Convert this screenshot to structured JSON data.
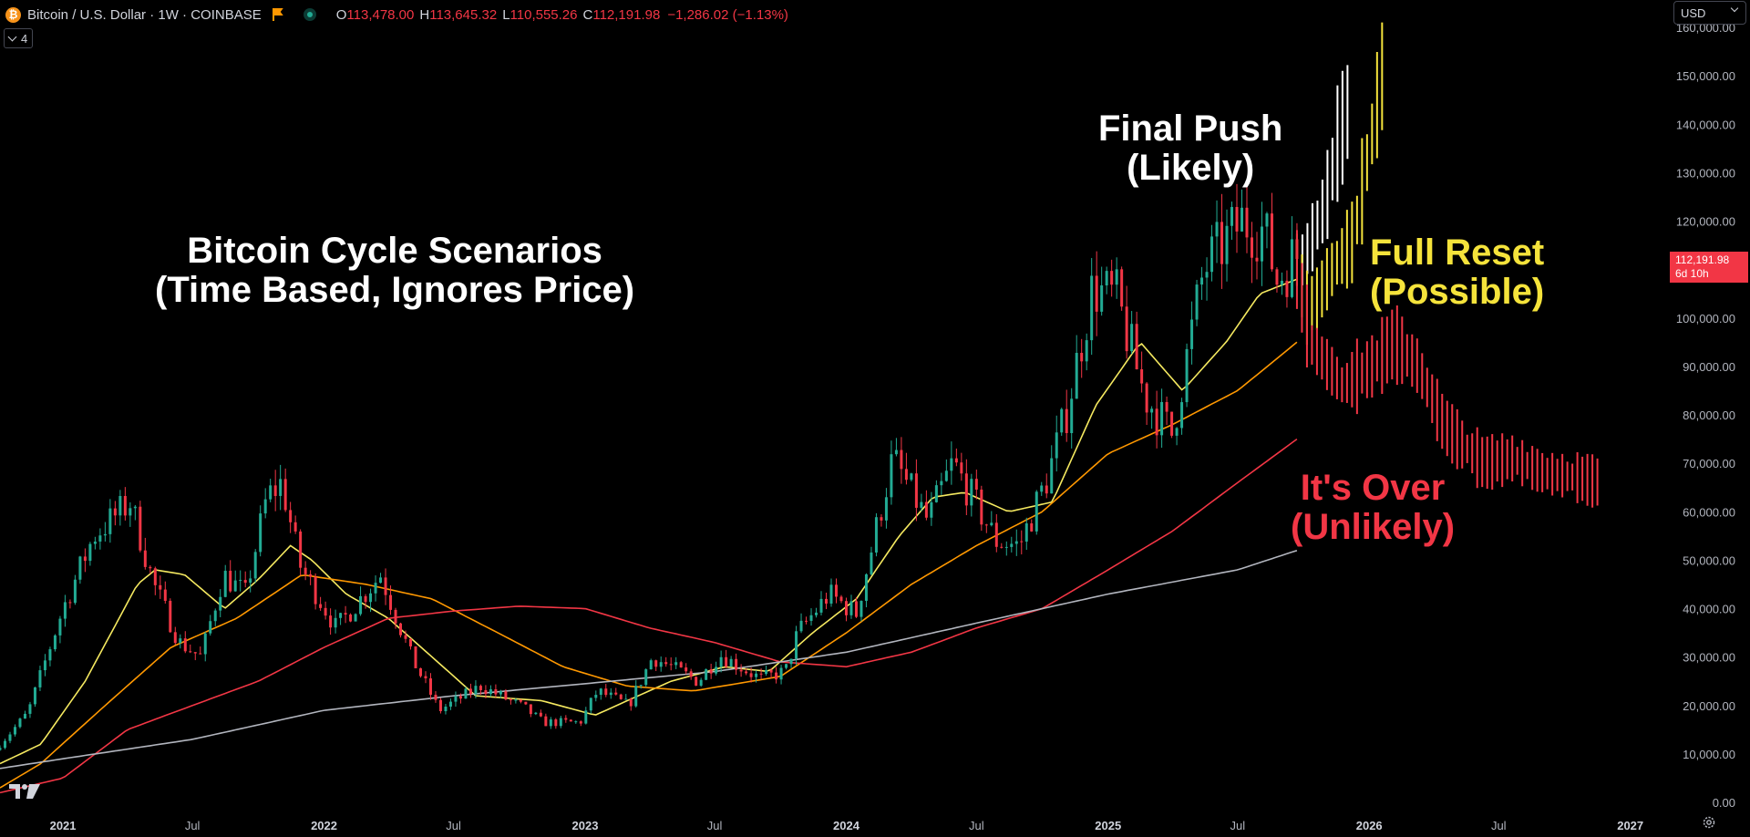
{
  "header": {
    "symbol": "Bitcoin / U.S. Dollar · 1W · COINBASE",
    "btc_logo": "₿",
    "ohlc": [
      {
        "k": "O",
        "v": "113,478.00"
      },
      {
        "k": "H",
        "v": "113,645.32"
      },
      {
        "k": "L",
        "v": "110,555.26"
      },
      {
        "k": "C",
        "v": "112,191.98"
      }
    ],
    "change": "−1,286.02 (−1.13%)",
    "indicators_count": "4",
    "currency": "USD"
  },
  "price_label": {
    "price": "112,191.98",
    "countdown": "6d 10h",
    "color": "#f23645"
  },
  "annotations": {
    "title_line1": "Bitcoin Cycle Scenarios",
    "title_line2": "(Time Based, Ignores Price)",
    "final_line1": "Final Push",
    "final_line2": "(Likely)",
    "reset_line1": "Full Reset",
    "reset_line2": "(Possible)",
    "over_line1": "It's Over",
    "over_line2": "(Unlikely)"
  },
  "colors": {
    "up": "#22ab94",
    "down": "#f23645",
    "ma_yellow": "#f5e960",
    "ma_orange": "#ff9800",
    "ma_red": "#f23645",
    "ma_gray": "#b2b5be",
    "final_push": "#ffffff",
    "full_reset": "#f5e33b",
    "its_over": "#f23645"
  },
  "chart_data": {
    "type": "candlestick",
    "interval": "1W",
    "x_axis_labels": [
      "2021",
      "Jul",
      "2022",
      "Jul",
      "2023",
      "Jul",
      "2024",
      "Jul",
      "2025",
      "Jul",
      "2026",
      "Jul",
      "2027"
    ],
    "y_axis_labels": [
      "0.00",
      "10,000.00",
      "20,000.00",
      "30,000.00",
      "40,000.00",
      "50,000.00",
      "60,000.00",
      "70,000.00",
      "80,000.00",
      "90,000.00",
      "100,000.00",
      "110,000.00",
      "120,000.00",
      "130,000.00",
      "140,000.00",
      "150,000.00",
      "160,000.00"
    ],
    "ylim": [
      0,
      160000
    ],
    "xlim": [
      "2020-10-05",
      "2027-02-15"
    ],
    "price_keypoints": [
      [
        "2020-10-05",
        10800
      ],
      [
        "2020-11-20",
        18500
      ],
      [
        "2021-01-08",
        40000
      ],
      [
        "2021-02-20",
        55000
      ],
      [
        "2021-04-12",
        62000
      ],
      [
        "2021-05-15",
        45000
      ],
      [
        "2021-06-20",
        33000
      ],
      [
        "2021-07-20",
        30000
      ],
      [
        "2021-08-20",
        47000
      ],
      [
        "2021-09-20",
        43000
      ],
      [
        "2021-10-20",
        63000
      ],
      [
        "2021-11-10",
        66000
      ],
      [
        "2021-12-05",
        49000
      ],
      [
        "2022-01-25",
        36000
      ],
      [
        "2022-03-28",
        47000
      ],
      [
        "2022-05-10",
        30000
      ],
      [
        "2022-06-18",
        19000
      ],
      [
        "2022-08-15",
        24000
      ],
      [
        "2022-10-15",
        19500
      ],
      [
        "2022-11-10",
        16500
      ],
      [
        "2023-01-01",
        16500
      ],
      [
        "2023-01-25",
        23000
      ],
      [
        "2023-03-10",
        20000
      ],
      [
        "2023-04-12",
        30000
      ],
      [
        "2023-06-15",
        25000
      ],
      [
        "2023-07-15",
        30500
      ],
      [
        "2023-09-10",
        25500
      ],
      [
        "2023-10-15",
        27000
      ],
      [
        "2023-11-01",
        35000
      ],
      [
        "2023-12-15",
        43000
      ],
      [
        "2024-01-22",
        39000
      ],
      [
        "2024-03-13",
        71000
      ],
      [
        "2024-05-01",
        58000
      ],
      [
        "2024-06-05",
        70000
      ],
      [
        "2024-08-05",
        54000
      ],
      [
        "2024-09-06",
        53000
      ],
      [
        "2024-10-15",
        67000
      ],
      [
        "2024-11-10",
        80000
      ],
      [
        "2024-12-17",
        106000
      ],
      [
        "2025-01-20",
        104000
      ],
      [
        "2025-02-28",
        84000
      ],
      [
        "2025-04-07",
        76000
      ],
      [
        "2025-05-22",
        110000
      ],
      [
        "2025-07-14",
        120000
      ],
      [
        "2025-08-14",
        118000
      ],
      [
        "2025-09-01",
        108000
      ],
      [
        "2025-09-22",
        112192
      ]
    ],
    "moving_averages": [
      {
        "color": "#f5e960",
        "points": [
          [
            "2020-10-05",
            8000
          ],
          [
            "2020-12-01",
            12000
          ],
          [
            "2021-02-01",
            25000
          ],
          [
            "2021-04-15",
            45000
          ],
          [
            "2021-05-10",
            48000
          ],
          [
            "2021-06-20",
            47000
          ],
          [
            "2021-08-15",
            40000
          ],
          [
            "2021-10-01",
            46000
          ],
          [
            "2021-11-15",
            53000
          ],
          [
            "2021-12-15",
            50000
          ],
          [
            "2022-02-01",
            43000
          ],
          [
            "2022-04-01",
            38000
          ],
          [
            "2022-06-01",
            30000
          ],
          [
            "2022-08-01",
            22000
          ],
          [
            "2022-11-01",
            21000
          ],
          [
            "2023-01-15",
            18000
          ],
          [
            "2023-03-01",
            21000
          ],
          [
            "2023-05-01",
            25000
          ],
          [
            "2023-07-15",
            28000
          ],
          [
            "2023-09-15",
            27000
          ],
          [
            "2023-11-15",
            35000
          ],
          [
            "2024-01-15",
            42000
          ],
          [
            "2024-03-15",
            55000
          ],
          [
            "2024-05-01",
            63000
          ],
          [
            "2024-06-15",
            64000
          ],
          [
            "2024-08-15",
            60000
          ],
          [
            "2024-10-15",
            62000
          ],
          [
            "2024-12-15",
            82000
          ],
          [
            "2025-02-15",
            95000
          ],
          [
            "2025-04-15",
            85000
          ],
          [
            "2025-06-15",
            95000
          ],
          [
            "2025-08-01",
            105000
          ],
          [
            "2025-09-22",
            108000
          ]
        ]
      },
      {
        "color": "#ff9800",
        "points": [
          [
            "2020-10-05",
            3000
          ],
          [
            "2020-12-01",
            8000
          ],
          [
            "2021-03-01",
            20000
          ],
          [
            "2021-06-01",
            32000
          ],
          [
            "2021-09-01",
            38000
          ],
          [
            "2021-12-01",
            47000
          ],
          [
            "2022-03-01",
            45000
          ],
          [
            "2022-06-01",
            42000
          ],
          [
            "2022-09-01",
            35000
          ],
          [
            "2022-12-01",
            28000
          ],
          [
            "2023-03-01",
            24000
          ],
          [
            "2023-06-01",
            23000
          ],
          [
            "2023-10-01",
            26000
          ],
          [
            "2024-01-01",
            35000
          ],
          [
            "2024-04-01",
            45000
          ],
          [
            "2024-07-01",
            53000
          ],
          [
            "2024-10-01",
            60000
          ],
          [
            "2025-01-01",
            72000
          ],
          [
            "2025-04-01",
            78000
          ],
          [
            "2025-07-01",
            85000
          ],
          [
            "2025-09-22",
            95000
          ]
        ]
      },
      {
        "color": "#f23645",
        "points": [
          [
            "2020-10-05",
            2000
          ],
          [
            "2021-01-01",
            5000
          ],
          [
            "2021-04-01",
            15000
          ],
          [
            "2021-07-01",
            20000
          ],
          [
            "2021-10-01",
            25000
          ],
          [
            "2022-01-01",
            32000
          ],
          [
            "2022-04-01",
            38000
          ],
          [
            "2022-07-01",
            39500
          ],
          [
            "2022-10-01",
            40500
          ],
          [
            "2023-01-01",
            40000
          ],
          [
            "2023-04-01",
            36000
          ],
          [
            "2023-07-01",
            33000
          ],
          [
            "2023-10-01",
            29000
          ],
          [
            "2024-01-01",
            28000
          ],
          [
            "2024-04-01",
            31000
          ],
          [
            "2024-07-01",
            36000
          ],
          [
            "2024-10-01",
            40000
          ],
          [
            "2025-01-01",
            48000
          ],
          [
            "2025-04-01",
            56000
          ],
          [
            "2025-07-01",
            66000
          ],
          [
            "2025-09-22",
            75000
          ]
        ]
      },
      {
        "color": "#b2b5be",
        "points": [
          [
            "2020-10-05",
            7000
          ],
          [
            "2021-01-01",
            9000
          ],
          [
            "2021-07-01",
            13000
          ],
          [
            "2022-01-01",
            19000
          ],
          [
            "2022-07-01",
            22000
          ],
          [
            "2023-01-01",
            24500
          ],
          [
            "2023-07-01",
            27000
          ],
          [
            "2024-01-01",
            31000
          ],
          [
            "2024-07-01",
            37000
          ],
          [
            "2025-01-01",
            43000
          ],
          [
            "2025-07-01",
            48000
          ],
          [
            "2025-09-22",
            52000
          ]
        ]
      }
    ],
    "scenarios": [
      {
        "name": "Final Push (Likely)",
        "color": "#ffffff",
        "points": [
          [
            "2025-09-22",
            112000
          ],
          [
            "2025-10-10",
            118000
          ],
          [
            "2025-10-25",
            124000
          ],
          [
            "2025-11-10",
            136000
          ],
          [
            "2025-11-25",
            143000
          ]
        ]
      },
      {
        "name": "Full Reset (Possible)",
        "color": "#f5e33b",
        "points": [
          [
            "2025-09-22",
            112000
          ],
          [
            "2025-10-05",
            102000
          ],
          [
            "2025-10-20",
            104000
          ],
          [
            "2025-11-10",
            110000
          ],
          [
            "2025-12-10",
            116000
          ],
          [
            "2026-01-05",
            138000
          ],
          [
            "2026-01-25",
            155000
          ]
        ]
      },
      {
        "name": "It's Over (Unlikely)",
        "color": "#f23645",
        "points": [
          [
            "2025-09-22",
            110000
          ],
          [
            "2025-10-10",
            95000
          ],
          [
            "2025-11-05",
            90000
          ],
          [
            "2025-11-25",
            86000
          ],
          [
            "2026-01-05",
            90000
          ],
          [
            "2026-02-05",
            95000
          ],
          [
            "2026-03-10",
            90000
          ],
          [
            "2026-04-15",
            78000
          ],
          [
            "2026-05-10",
            74000
          ],
          [
            "2026-06-10",
            70000
          ],
          [
            "2026-07-20",
            71000
          ],
          [
            "2026-09-01",
            68000
          ],
          [
            "2026-10-20",
            67000
          ],
          [
            "2026-11-20",
            66000
          ]
        ]
      }
    ]
  }
}
